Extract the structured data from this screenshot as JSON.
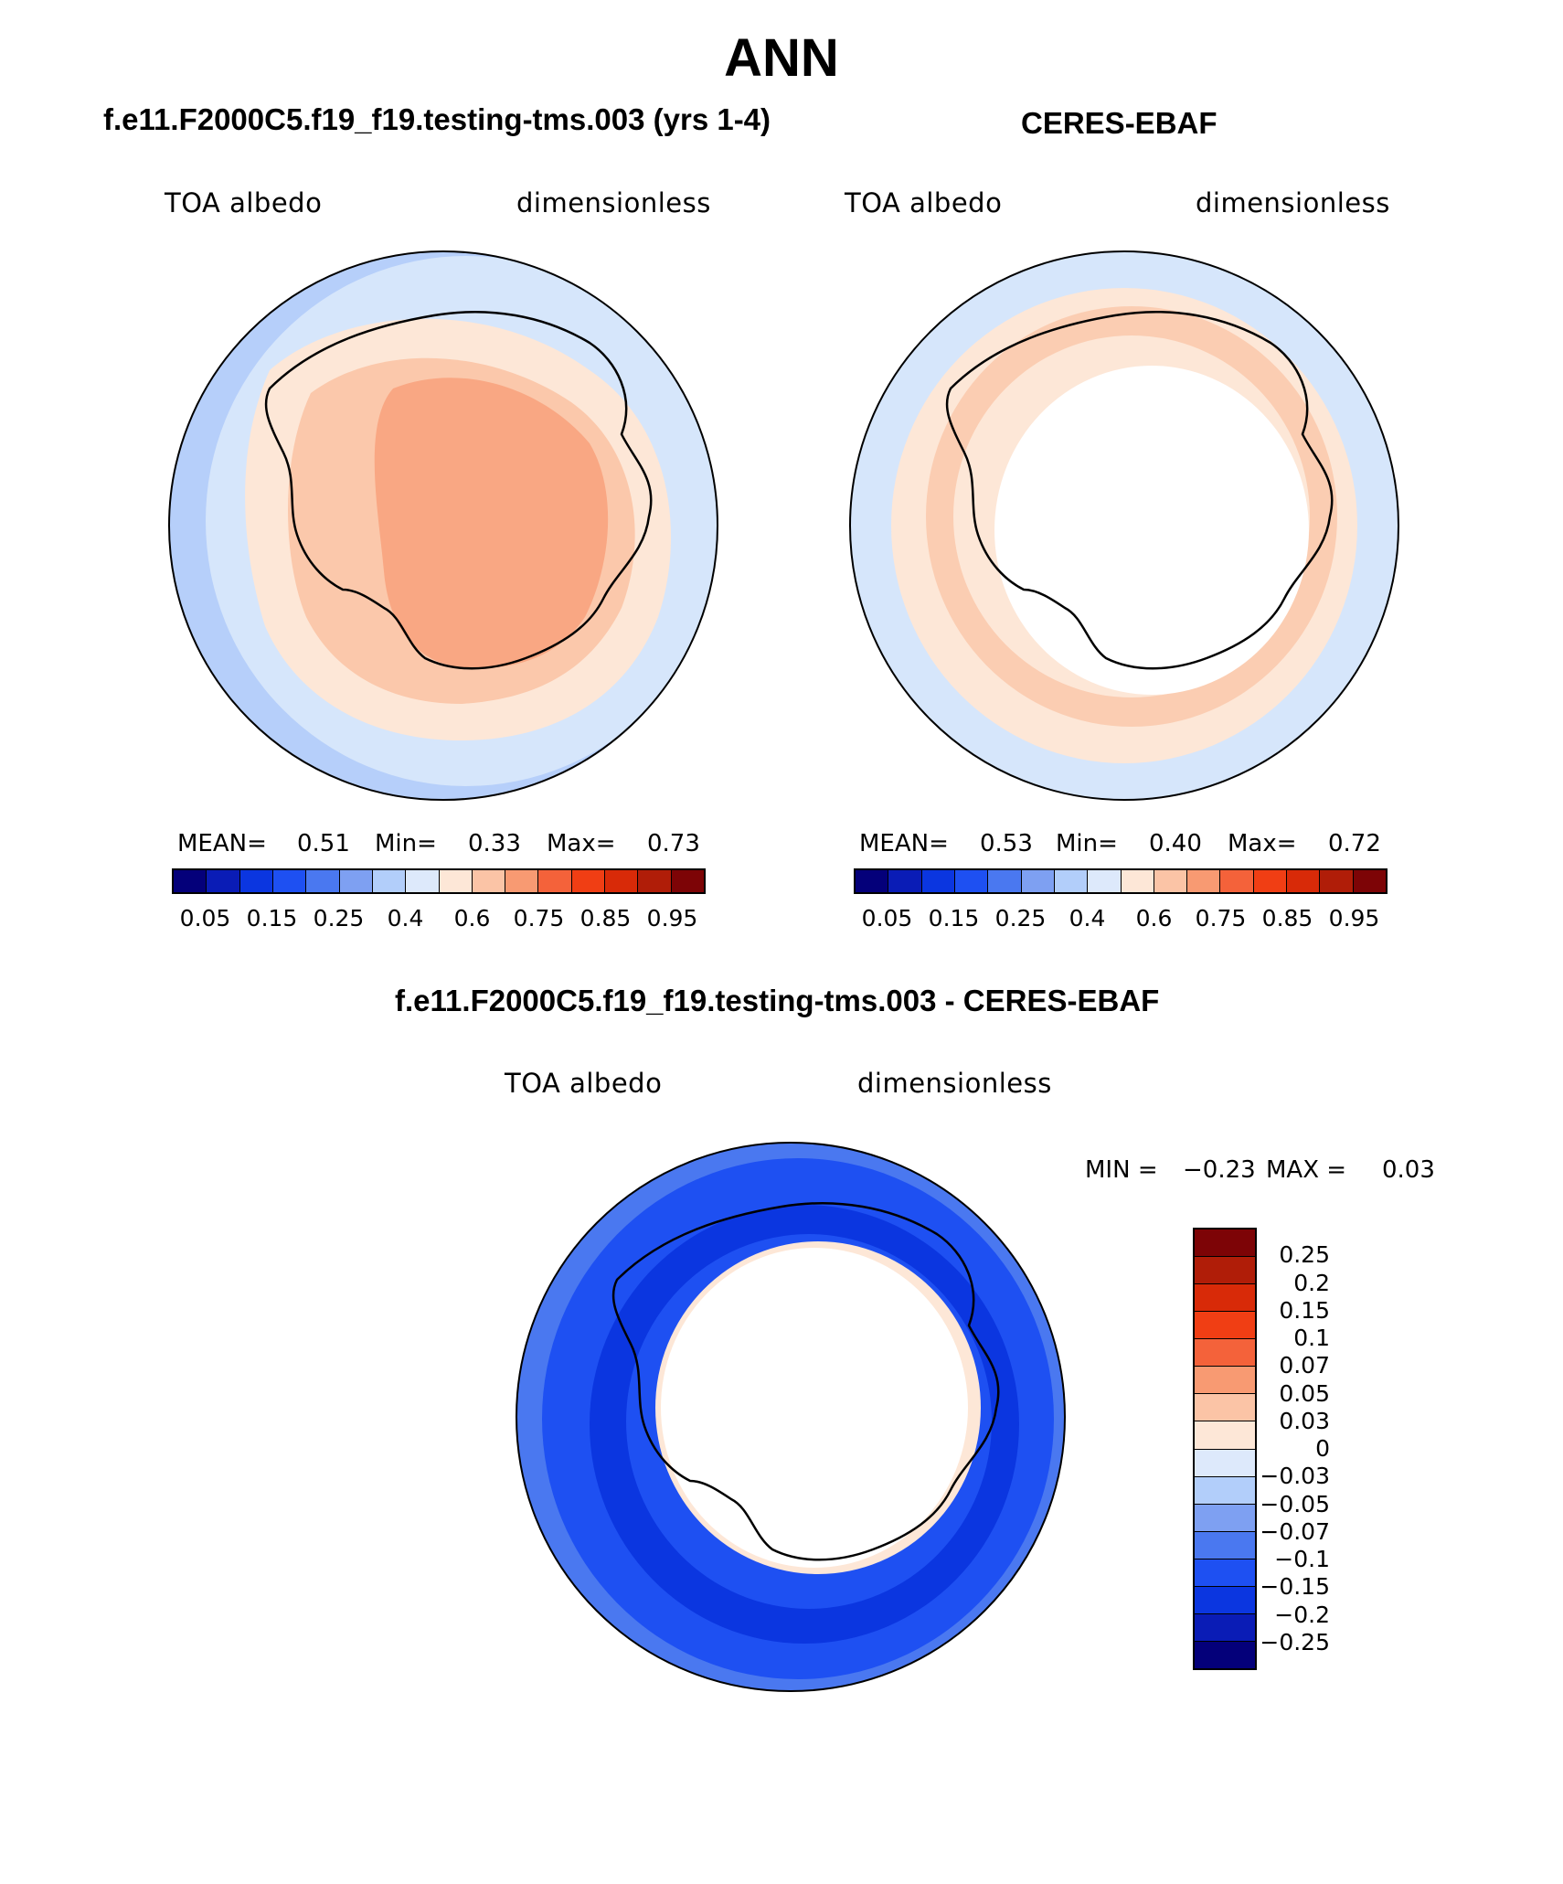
{
  "page_title": "ANN",
  "panels": [
    {
      "title": "f.e11.F2000C5.f19_f19.testing-tms.003 (yrs 1-4)",
      "left_label": "TOA albedo",
      "right_label": "dimensionless",
      "mean_label": "MEAN=",
      "mean_value": "0.51",
      "min_label": "Min=",
      "min_value": "0.33",
      "max_label": "Max=",
      "max_value": "0.73"
    },
    {
      "title": "CERES-EBAF",
      "left_label": "TOA albedo",
      "right_label": "dimensionless",
      "mean_label": "MEAN=",
      "mean_value": "0.53",
      "min_label": "Min=",
      "min_value": "0.40",
      "max_label": "Max=",
      "max_value": "0.72"
    }
  ],
  "colorbar_ticks": [
    "0.05",
    "0.15",
    "0.25",
    "0.4",
    "0.6",
    "0.75",
    "0.85",
    "0.95"
  ],
  "colorbar_colors": [
    "#04007a",
    "#0a1cb6",
    "#0b36e0",
    "#1e50f2",
    "#4a78f0",
    "#7ea0f2",
    "#b2cefa",
    "#dde9fb",
    "#fde7d7",
    "#fbc4a6",
    "#f89a72",
    "#f4623a",
    "#f03e14",
    "#d82a08",
    "#b01d08",
    "#7d0406"
  ],
  "diff_panel": {
    "title": "f.e11.F2000C5.f19_f19.testing-tms.003 - CERES-EBAF",
    "left_label": "TOA albedo",
    "right_label": "dimensionless",
    "min_label": "MIN =",
    "min_value": "−0.23",
    "max_label": "MAX =",
    "max_value": "0.03",
    "ticks": [
      "0.25",
      "0.2",
      "0.15",
      "0.1",
      "0.07",
      "0.05",
      "0.03",
      "0",
      "−0.03",
      "−0.05",
      "−0.07",
      "−0.1",
      "−0.15",
      "−0.2",
      "−0.25"
    ],
    "colors": [
      "#7d0406",
      "#b01d08",
      "#d82a08",
      "#f03e14",
      "#f4623a",
      "#f89a72",
      "#fbc4a6",
      "#fde7d7",
      "#dde9fb",
      "#b2cefa",
      "#7ea0f2",
      "#4a78f0",
      "#1e50f2",
      "#0b36e0",
      "#0a1cb6",
      "#04007a"
    ]
  }
}
